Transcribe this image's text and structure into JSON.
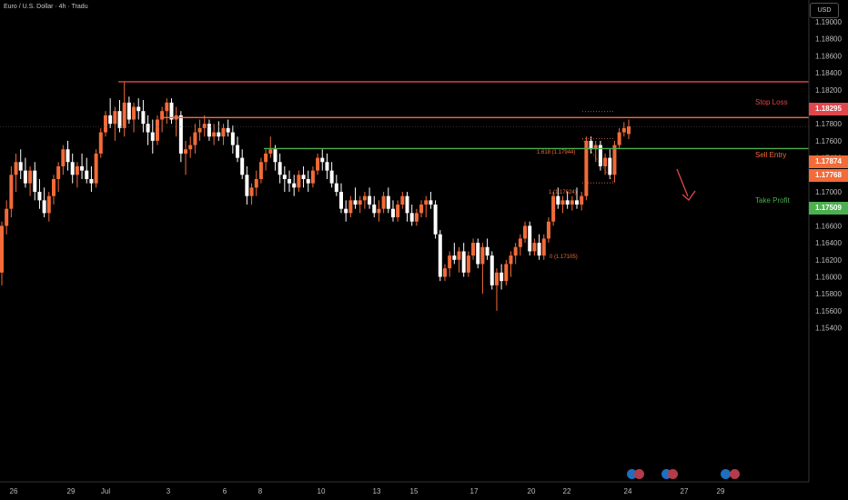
{
  "header": {
    "symbol": "Euro / U.S. Dollar · 4h · Tradu",
    "currency": "USD"
  },
  "colors": {
    "up": "#f26b38",
    "down": "#ffffff",
    "stop_loss": "#e0474c",
    "sell_entry": "#f26b38",
    "take_profit": "#4caf50",
    "background": "#000000"
  },
  "chart_data": {
    "type": "candlestick",
    "title": "Euro / U.S. Dollar · 4h · Tradu",
    "y_axis": {
      "ylim": [
        1.1535,
        1.1925
      ],
      "ticks": [
        "1.19000",
        "1.18800",
        "1.18600",
        "1.18400",
        "1.18200",
        "1.18000",
        "1.17800",
        "1.17600",
        "1.17400",
        "1.17200",
        "1.17000",
        "1.16800",
        "1.16600",
        "1.16400",
        "1.16200",
        "1.16000",
        "1.15800",
        "1.15600",
        "1.15400"
      ]
    },
    "x_axis": {
      "labels": [
        "26",
        "29",
        "Jul",
        "3",
        "6",
        "8",
        "10",
        "13",
        "15",
        "17",
        "20",
        "22",
        "24",
        "27",
        "29"
      ]
    },
    "levels": [
      {
        "name": "Stop Loss",
        "price": 1.18295,
        "label": "1.18295"
      },
      {
        "name": "Sell Entry",
        "price": 1.17874,
        "label": "1.17874"
      },
      {
        "name": "Take Profit",
        "price": 1.17509,
        "label": "1.17509"
      }
    ],
    "current_price": {
      "price": 1.17768,
      "label": "1.17768"
    },
    "fibonacci": [
      {
        "label": "1.618 (1.17944)",
        "price": 1.17944
      },
      {
        "label": "1 (1.17624)",
        "price": 1.17624
      },
      {
        "label": "0 (1.17105)",
        "price": 1.17105
      }
    ],
    "candles": [
      [
        1.1605,
        1.1665,
        1.159,
        1.166
      ],
      [
        1.166,
        1.169,
        1.165,
        1.168
      ],
      [
        1.168,
        1.173,
        1.167,
        1.172
      ],
      [
        1.172,
        1.1745,
        1.17,
        1.1735
      ],
      [
        1.1735,
        1.175,
        1.1715,
        1.1725
      ],
      [
        1.1725,
        1.174,
        1.1705,
        1.171
      ],
      [
        1.171,
        1.173,
        1.1695,
        1.1725
      ],
      [
        1.1725,
        1.1735,
        1.169,
        1.17
      ],
      [
        1.17,
        1.1715,
        1.168,
        1.169
      ],
      [
        1.169,
        1.1705,
        1.167,
        1.1675
      ],
      [
        1.1675,
        1.17,
        1.1665,
        1.1695
      ],
      [
        1.1695,
        1.172,
        1.1685,
        1.1715
      ],
      [
        1.1715,
        1.1735,
        1.17,
        1.173
      ],
      [
        1.173,
        1.1755,
        1.172,
        1.175
      ],
      [
        1.175,
        1.176,
        1.1725,
        1.1735
      ],
      [
        1.1735,
        1.1745,
        1.171,
        1.172
      ],
      [
        1.172,
        1.1735,
        1.1705,
        1.173
      ],
      [
        1.173,
        1.1745,
        1.1715,
        1.1725
      ],
      [
        1.1725,
        1.174,
        1.171,
        1.1715
      ],
      [
        1.1715,
        1.173,
        1.17,
        1.171
      ],
      [
        1.171,
        1.175,
        1.1705,
        1.1745
      ],
      [
        1.1745,
        1.1775,
        1.174,
        1.177
      ],
      [
        1.177,
        1.1795,
        1.1765,
        1.179
      ],
      [
        1.179,
        1.181,
        1.1775,
        1.178
      ],
      [
        1.178,
        1.18,
        1.176,
        1.1795
      ],
      [
        1.1795,
        1.1808,
        1.177,
        1.1775
      ],
      [
        1.1775,
        1.183,
        1.1765,
        1.1805
      ],
      [
        1.1805,
        1.1812,
        1.178,
        1.1785
      ],
      [
        1.1785,
        1.1805,
        1.177,
        1.18
      ],
      [
        1.18,
        1.181,
        1.1785,
        1.1795
      ],
      [
        1.1795,
        1.1808,
        1.177,
        1.178
      ],
      [
        1.178,
        1.179,
        1.1755,
        1.177
      ],
      [
        1.177,
        1.1785,
        1.1745,
        1.176
      ],
      [
        1.176,
        1.179,
        1.1755,
        1.1785
      ],
      [
        1.1785,
        1.18,
        1.177,
        1.1795
      ],
      [
        1.1795,
        1.181,
        1.178,
        1.1805
      ],
      [
        1.1805,
        1.181,
        1.178,
        1.1785
      ],
      [
        1.1785,
        1.18,
        1.1765,
        1.179
      ],
      [
        1.179,
        1.1795,
        1.1735,
        1.1745
      ],
      [
        1.1745,
        1.176,
        1.172,
        1.175
      ],
      [
        1.175,
        1.1765,
        1.174,
        1.1755
      ],
      [
        1.1755,
        1.178,
        1.1745,
        1.177
      ],
      [
        1.177,
        1.1785,
        1.176,
        1.1775
      ],
      [
        1.1775,
        1.179,
        1.1765,
        1.178
      ],
      [
        1.178,
        1.1785,
        1.176,
        1.1765
      ],
      [
        1.1765,
        1.178,
        1.1755,
        1.177
      ],
      [
        1.177,
        1.1783,
        1.176,
        1.1765
      ],
      [
        1.1765,
        1.178,
        1.1755,
        1.1775
      ],
      [
        1.1775,
        1.1785,
        1.1765,
        1.177
      ],
      [
        1.177,
        1.1778,
        1.1745,
        1.1755
      ],
      [
        1.1755,
        1.1765,
        1.1735,
        1.174
      ],
      [
        1.174,
        1.175,
        1.1715,
        1.172
      ],
      [
        1.172,
        1.173,
        1.1685,
        1.1695
      ],
      [
        1.1695,
        1.171,
        1.1685,
        1.1705
      ],
      [
        1.1705,
        1.1725,
        1.1695,
        1.1715
      ],
      [
        1.1715,
        1.174,
        1.171,
        1.1735
      ],
      [
        1.1735,
        1.175,
        1.1725,
        1.1745
      ],
      [
        1.1745,
        1.1765,
        1.174,
        1.175
      ],
      [
        1.175,
        1.1755,
        1.1725,
        1.1735
      ],
      [
        1.1735,
        1.1745,
        1.171,
        1.172
      ],
      [
        1.172,
        1.173,
        1.17,
        1.1715
      ],
      [
        1.1715,
        1.1725,
        1.17,
        1.171
      ],
      [
        1.171,
        1.172,
        1.1695,
        1.1705
      ],
      [
        1.1705,
        1.1725,
        1.17,
        1.172
      ],
      [
        1.172,
        1.173,
        1.1705,
        1.1715
      ],
      [
        1.1715,
        1.1725,
        1.17,
        1.171
      ],
      [
        1.171,
        1.173,
        1.1705,
        1.1725
      ],
      [
        1.1725,
        1.1745,
        1.172,
        1.174
      ],
      [
        1.174,
        1.175,
        1.1725,
        1.1735
      ],
      [
        1.1735,
        1.1745,
        1.1715,
        1.1725
      ],
      [
        1.1725,
        1.1735,
        1.1705,
        1.171
      ],
      [
        1.171,
        1.172,
        1.1695,
        1.17
      ],
      [
        1.17,
        1.171,
        1.1675,
        1.168
      ],
      [
        1.168,
        1.169,
        1.1665,
        1.1675
      ],
      [
        1.1675,
        1.1695,
        1.167,
        1.169
      ],
      [
        1.169,
        1.1705,
        1.168,
        1.1685
      ],
      [
        1.1685,
        1.1695,
        1.1675,
        1.169
      ],
      [
        1.169,
        1.17,
        1.168,
        1.1695
      ],
      [
        1.1695,
        1.1705,
        1.168,
        1.1685
      ],
      [
        1.1685,
        1.1695,
        1.167,
        1.1675
      ],
      [
        1.1675,
        1.169,
        1.1665,
        1.168
      ],
      [
        1.168,
        1.17,
        1.1675,
        1.1695
      ],
      [
        1.1695,
        1.1705,
        1.1675,
        1.168
      ],
      [
        1.168,
        1.169,
        1.1665,
        1.167
      ],
      [
        1.167,
        1.169,
        1.1665,
        1.1685
      ],
      [
        1.1685,
        1.17,
        1.168,
        1.1695
      ],
      [
        1.1695,
        1.17,
        1.1665,
        1.1675
      ],
      [
        1.1675,
        1.1685,
        1.166,
        1.1665
      ],
      [
        1.1665,
        1.168,
        1.166,
        1.1675
      ],
      [
        1.1675,
        1.169,
        1.167,
        1.1685
      ],
      [
        1.1685,
        1.1695,
        1.167,
        1.169
      ],
      [
        1.169,
        1.17,
        1.168,
        1.1685
      ],
      [
        1.1685,
        1.169,
        1.1645,
        1.165
      ],
      [
        1.165,
        1.1655,
        1.1595,
        1.16
      ],
      [
        1.16,
        1.1615,
        1.1595,
        1.161
      ],
      [
        1.161,
        1.163,
        1.16,
        1.1625
      ],
      [
        1.1625,
        1.164,
        1.1615,
        1.162
      ],
      [
        1.162,
        1.1635,
        1.1605,
        1.163
      ],
      [
        1.163,
        1.164,
        1.16,
        1.1605
      ],
      [
        1.1605,
        1.163,
        1.16,
        1.1625
      ],
      [
        1.1625,
        1.1645,
        1.162,
        1.164
      ],
      [
        1.164,
        1.1645,
        1.161,
        1.1615
      ],
      [
        1.1615,
        1.164,
        1.158,
        1.1635
      ],
      [
        1.1635,
        1.1645,
        1.162,
        1.1625
      ],
      [
        1.1625,
        1.163,
        1.1585,
        1.159
      ],
      [
        1.159,
        1.161,
        1.156,
        1.1605
      ],
      [
        1.1605,
        1.1615,
        1.1585,
        1.1595
      ],
      [
        1.1595,
        1.162,
        1.159,
        1.1615
      ],
      [
        1.1615,
        1.163,
        1.16,
        1.1625
      ],
      [
        1.1625,
        1.164,
        1.1615,
        1.1635
      ],
      [
        1.1635,
        1.165,
        1.1625,
        1.1645
      ],
      [
        1.1645,
        1.1665,
        1.164,
        1.166
      ],
      [
        1.166,
        1.1665,
        1.1625,
        1.163
      ],
      [
        1.163,
        1.1645,
        1.1625,
        1.164
      ],
      [
        1.164,
        1.165,
        1.162,
        1.1625
      ],
      [
        1.1625,
        1.165,
        1.162,
        1.1645
      ],
      [
        1.1645,
        1.167,
        1.164,
        1.1665
      ],
      [
        1.1665,
        1.17,
        1.166,
        1.1695
      ],
      [
        1.1695,
        1.1705,
        1.168,
        1.1685
      ],
      [
        1.1685,
        1.1695,
        1.1675,
        1.169
      ],
      [
        1.169,
        1.17,
        1.168,
        1.1685
      ],
      [
        1.1685,
        1.1695,
        1.1678,
        1.169
      ],
      [
        1.169,
        1.1705,
        1.168,
        1.1685
      ],
      [
        1.1685,
        1.17,
        1.1678,
        1.1695
      ],
      [
        1.1695,
        1.1765,
        1.169,
        1.176
      ],
      [
        1.176,
        1.1765,
        1.1745,
        1.175
      ],
      [
        1.175,
        1.176,
        1.1735,
        1.1755
      ],
      [
        1.1755,
        1.176,
        1.1725,
        1.173
      ],
      [
        1.173,
        1.1745,
        1.172,
        1.174
      ],
      [
        1.174,
        1.175,
        1.1715,
        1.172
      ],
      [
        1.172,
        1.176,
        1.1711,
        1.1755
      ],
      [
        1.1755,
        1.1775,
        1.175,
        1.177
      ],
      [
        1.177,
        1.1782,
        1.1765,
        1.1775
      ],
      [
        1.1768,
        1.1785,
        1.1762,
        1.1777
      ]
    ],
    "grid": false,
    "events": [
      "icon-group-24",
      "icon-group-27",
      "icon-group-29"
    ]
  },
  "labels": {
    "stop_loss": "Stop Loss",
    "sell_entry": "Sell Entry",
    "take_profit": "Take Profit"
  }
}
